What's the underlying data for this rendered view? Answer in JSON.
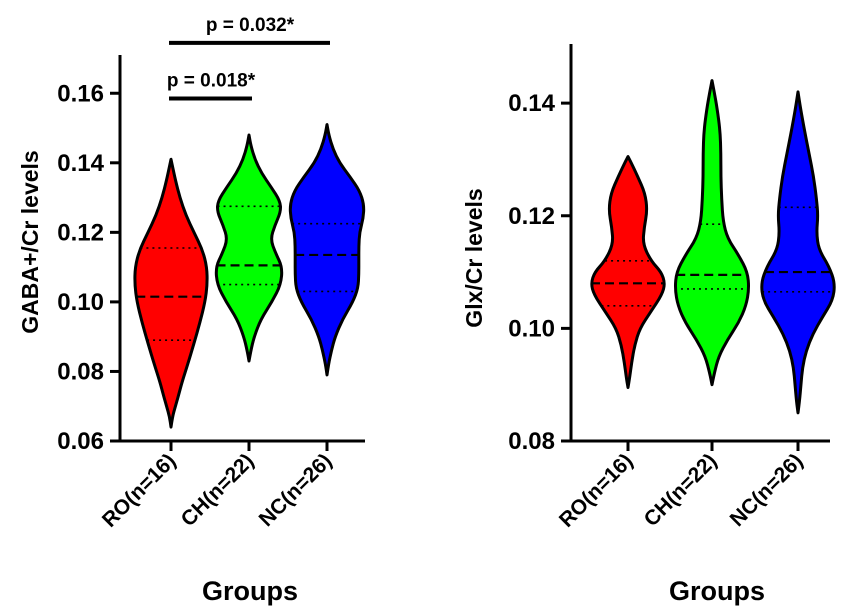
{
  "chart_data": [
    {
      "type": "violin",
      "title": "",
      "xlabel": "Groups",
      "ylabel": "GABA+/Cr levels",
      "ylim": [
        0.06,
        0.17
      ],
      "yticks": [
        0.06,
        0.08,
        0.1,
        0.12,
        0.14,
        0.16
      ],
      "yticklabels": [
        "0.06",
        "0.08",
        "0.10",
        "0.12",
        "0.14",
        "0.16"
      ],
      "categories": [
        "RO(n=16)",
        "CH(n=22)",
        "NC(n=26)"
      ],
      "series": [
        {
          "name": "RO(n=16)",
          "color": "#ff0000",
          "min": 0.064,
          "max": 0.141,
          "q1": 0.089,
          "median": 0.1015,
          "q3": 0.1155,
          "profile": [
            [
              0.064,
              0.0
            ],
            [
              0.067,
              0.04
            ],
            [
              0.07,
              0.12
            ],
            [
              0.073,
              0.2
            ],
            [
              0.077,
              0.3
            ],
            [
              0.082,
              0.45
            ],
            [
              0.088,
              0.62
            ],
            [
              0.094,
              0.78
            ],
            [
              0.1,
              0.92
            ],
            [
              0.105,
              0.98
            ],
            [
              0.11,
              0.97
            ],
            [
              0.115,
              0.85
            ],
            [
              0.12,
              0.62
            ],
            [
              0.125,
              0.4
            ],
            [
              0.13,
              0.24
            ],
            [
              0.135,
              0.12
            ],
            [
              0.139,
              0.04
            ],
            [
              0.141,
              0.0
            ]
          ]
        },
        {
          "name": "CH(n=22)",
          "color": "#00ff00",
          "min": 0.083,
          "max": 0.148,
          "q1": 0.105,
          "median": 0.1105,
          "q3": 0.1275,
          "profile": [
            [
              0.083,
              0.0
            ],
            [
              0.086,
              0.05
            ],
            [
              0.09,
              0.14
            ],
            [
              0.095,
              0.32
            ],
            [
              0.1,
              0.62
            ],
            [
              0.105,
              0.86
            ],
            [
              0.11,
              0.9
            ],
            [
              0.114,
              0.72
            ],
            [
              0.118,
              0.58
            ],
            [
              0.122,
              0.7
            ],
            [
              0.126,
              0.86
            ],
            [
              0.129,
              0.84
            ],
            [
              0.133,
              0.6
            ],
            [
              0.137,
              0.34
            ],
            [
              0.141,
              0.16
            ],
            [
              0.145,
              0.05
            ],
            [
              0.148,
              0.0
            ]
          ]
        },
        {
          "name": "NC(n=26)",
          "color": "#0000ff",
          "min": 0.079,
          "max": 0.151,
          "q1": 0.103,
          "median": 0.1135,
          "q3": 0.1225,
          "profile": [
            [
              0.079,
              0.0
            ],
            [
              0.082,
              0.04
            ],
            [
              0.086,
              0.12
            ],
            [
              0.09,
              0.22
            ],
            [
              0.095,
              0.42
            ],
            [
              0.1,
              0.7
            ],
            [
              0.104,
              0.84
            ],
            [
              0.108,
              0.86
            ],
            [
              0.112,
              0.86
            ],
            [
              0.116,
              0.86
            ],
            [
              0.12,
              0.88
            ],
            [
              0.124,
              0.98
            ],
            [
              0.128,
              1.0
            ],
            [
              0.132,
              0.88
            ],
            [
              0.136,
              0.62
            ],
            [
              0.14,
              0.34
            ],
            [
              0.144,
              0.16
            ],
            [
              0.148,
              0.05
            ],
            [
              0.151,
              0.0
            ]
          ]
        }
      ],
      "annotations": [
        {
          "text": "p = 0.018*",
          "between": [
            "RO(n=16)",
            "CH(n=22)"
          ],
          "y": 0.1585
        },
        {
          "text": "p = 0.032*",
          "between": [
            "RO(n=16)",
            "NC(n=26)"
          ],
          "y": 0.1745
        }
      ]
    },
    {
      "type": "violin",
      "title": "",
      "xlabel": "Groups",
      "ylabel": "Glx/Cr levels",
      "ylim": [
        0.08,
        0.15
      ],
      "yticks": [
        0.08,
        0.1,
        0.12,
        0.14
      ],
      "yticklabels": [
        "0.08",
        "0.10",
        "0.12",
        "0.14"
      ],
      "categories": [
        "RO(n=16)",
        "CH(n=22)",
        "NC(n=26)"
      ],
      "series": [
        {
          "name": "RO(n=16)",
          "color": "#ff0000",
          "min": 0.0895,
          "max": 0.1305,
          "q1": 0.104,
          "median": 0.108,
          "q3": 0.112,
          "profile": [
            [
              0.0895,
              0.0
            ],
            [
              0.091,
              0.04
            ],
            [
              0.094,
              0.1
            ],
            [
              0.097,
              0.18
            ],
            [
              0.1,
              0.32
            ],
            [
              0.103,
              0.62
            ],
            [
              0.106,
              0.92
            ],
            [
              0.108,
              1.0
            ],
            [
              0.11,
              0.9
            ],
            [
              0.112,
              0.62
            ],
            [
              0.115,
              0.4
            ],
            [
              0.118,
              0.44
            ],
            [
              0.121,
              0.52
            ],
            [
              0.124,
              0.46
            ],
            [
              0.127,
              0.26
            ],
            [
              0.1295,
              0.08
            ],
            [
              0.1305,
              0.0
            ]
          ]
        },
        {
          "name": "CH(n=22)",
          "color": "#00ff00",
          "min": 0.09,
          "max": 0.144,
          "q1": 0.107,
          "median": 0.1095,
          "q3": 0.1185,
          "profile": [
            [
              0.09,
              0.0
            ],
            [
              0.092,
              0.06
            ],
            [
              0.095,
              0.18
            ],
            [
              0.098,
              0.42
            ],
            [
              0.101,
              0.72
            ],
            [
              0.104,
              0.92
            ],
            [
              0.107,
              1.0
            ],
            [
              0.11,
              0.96
            ],
            [
              0.113,
              0.72
            ],
            [
              0.116,
              0.42
            ],
            [
              0.119,
              0.3
            ],
            [
              0.123,
              0.26
            ],
            [
              0.127,
              0.24
            ],
            [
              0.131,
              0.24
            ],
            [
              0.135,
              0.22
            ],
            [
              0.139,
              0.14
            ],
            [
              0.142,
              0.06
            ],
            [
              0.144,
              0.0
            ]
          ]
        },
        {
          "name": "NC(n=26)",
          "color": "#0000ff",
          "min": 0.085,
          "max": 0.142,
          "q1": 0.1065,
          "median": 0.11,
          "q3": 0.1215,
          "profile": [
            [
              0.085,
              0.0
            ],
            [
              0.087,
              0.04
            ],
            [
              0.09,
              0.08
            ],
            [
              0.093,
              0.12
            ],
            [
              0.096,
              0.22
            ],
            [
              0.099,
              0.4
            ],
            [
              0.102,
              0.66
            ],
            [
              0.105,
              0.94
            ],
            [
              0.108,
              1.0
            ],
            [
              0.111,
              0.84
            ],
            [
              0.114,
              0.56
            ],
            [
              0.117,
              0.5
            ],
            [
              0.12,
              0.54
            ],
            [
              0.123,
              0.5
            ],
            [
              0.127,
              0.42
            ],
            [
              0.131,
              0.3
            ],
            [
              0.135,
              0.18
            ],
            [
              0.139,
              0.07
            ],
            [
              0.142,
              0.0
            ]
          ]
        }
      ],
      "annotations": []
    }
  ]
}
